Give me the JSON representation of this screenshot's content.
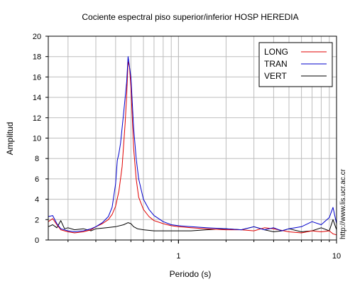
{
  "chart_data": {
    "type": "line",
    "title": "Cociente espectral piso superior/inferior  HOSP HEREDIA",
    "xlabel": "Periodo (s)",
    "ylabel": "Amplitud",
    "x_scale": "log",
    "xlim": [
      0.15,
      10
    ],
    "ylim": [
      0,
      20
    ],
    "y_ticks": [
      0,
      2,
      4,
      6,
      8,
      10,
      12,
      14,
      16,
      18,
      20
    ],
    "x_tick_labels": [
      {
        "value": 1,
        "label": "1"
      },
      {
        "value": 10,
        "label": "10"
      }
    ],
    "grid": true,
    "legend_position": "top-right",
    "side_text": "http://www.lis.ucr.ac.cr",
    "colors": {
      "LONG": "#e00000",
      "TRAN": "#0000cc",
      "VERT": "#000000"
    },
    "series": [
      {
        "name": "LONG",
        "x": [
          0.15,
          0.16,
          0.17,
          0.18,
          0.2,
          0.22,
          0.25,
          0.28,
          0.3,
          0.33,
          0.36,
          0.38,
          0.4,
          0.42,
          0.44,
          0.46,
          0.47,
          0.48,
          0.49,
          0.5,
          0.51,
          0.52,
          0.54,
          0.56,
          0.6,
          0.65,
          0.7,
          0.8,
          0.9,
          1.0,
          1.2,
          1.5,
          2.0,
          2.5,
          3.0,
          3.5,
          4.0,
          5.0,
          6.0,
          7.0,
          8.0,
          9.0,
          9.5,
          10.0
        ],
        "y": [
          1.8,
          2.1,
          1.5,
          1.0,
          0.8,
          0.7,
          0.8,
          1.0,
          1.3,
          1.6,
          2.0,
          2.5,
          3.3,
          4.8,
          7.2,
          11.5,
          14.2,
          17.5,
          17.0,
          15.0,
          12.0,
          9.0,
          6.0,
          4.2,
          3.0,
          2.3,
          1.9,
          1.6,
          1.4,
          1.3,
          1.2,
          1.1,
          1.0,
          1.0,
          0.9,
          1.2,
          1.1,
          0.8,
          0.7,
          0.9,
          0.8,
          0.9,
          0.6,
          0.5
        ]
      },
      {
        "name": "TRAN",
        "x": [
          0.15,
          0.16,
          0.17,
          0.18,
          0.2,
          0.22,
          0.25,
          0.28,
          0.3,
          0.33,
          0.36,
          0.38,
          0.4,
          0.41,
          0.42,
          0.43,
          0.44,
          0.45,
          0.46,
          0.47,
          0.48,
          0.49,
          0.5,
          0.51,
          0.52,
          0.54,
          0.56,
          0.6,
          0.65,
          0.7,
          0.8,
          0.9,
          1.0,
          1.2,
          1.5,
          2.0,
          2.5,
          3.0,
          3.5,
          4.0,
          4.5,
          5.0,
          6.0,
          7.0,
          8.0,
          9.0,
          9.5,
          10.0
        ],
        "y": [
          2.3,
          2.4,
          1.6,
          1.1,
          0.9,
          0.8,
          0.9,
          1.1,
          1.3,
          1.7,
          2.3,
          3.2,
          5.5,
          7.8,
          8.5,
          9.5,
          11.0,
          12.5,
          14.0,
          15.5,
          18.0,
          17.0,
          16.0,
          13.5,
          11.0,
          8.0,
          6.0,
          4.0,
          3.0,
          2.4,
          1.8,
          1.5,
          1.4,
          1.3,
          1.2,
          1.1,
          1.0,
          1.3,
          1.0,
          1.2,
          0.9,
          1.1,
          1.3,
          1.8,
          1.5,
          2.2,
          3.2,
          1.6
        ]
      },
      {
        "name": "VERT",
        "x": [
          0.15,
          0.16,
          0.17,
          0.18,
          0.19,
          0.2,
          0.22,
          0.25,
          0.28,
          0.3,
          0.35,
          0.4,
          0.45,
          0.48,
          0.5,
          0.52,
          0.55,
          0.6,
          0.7,
          0.8,
          1.0,
          1.2,
          1.5,
          2.0,
          2.5,
          3.0,
          3.5,
          4.0,
          4.5,
          5.0,
          6.0,
          7.0,
          8.0,
          9.0,
          9.5,
          10.0
        ],
        "y": [
          1.3,
          1.5,
          1.2,
          1.9,
          1.1,
          1.2,
          1.0,
          1.1,
          0.9,
          1.1,
          1.2,
          1.3,
          1.5,
          1.7,
          1.6,
          1.3,
          1.1,
          1.0,
          0.9,
          0.9,
          0.9,
          0.9,
          1.0,
          1.1,
          1.0,
          1.3,
          1.0,
          0.8,
          0.9,
          1.1,
          0.8,
          0.9,
          1.2,
          0.9,
          2.0,
          1.0
        ]
      }
    ]
  }
}
